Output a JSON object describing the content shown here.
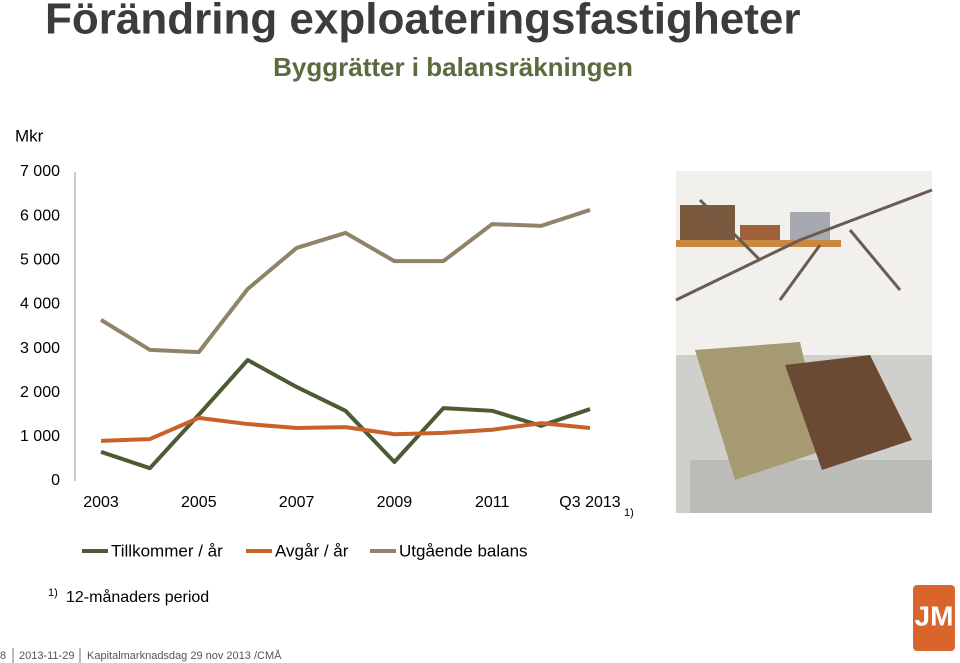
{
  "header": {
    "title": "Förändring exploateringsfastigheter",
    "subtitle": "Byggrätter i balansräkningen"
  },
  "chart_data": {
    "type": "line",
    "y_unit": "Mkr",
    "categories": [
      "2003",
      null,
      "2005",
      null,
      "2007",
      null,
      "2009",
      null,
      "2011",
      null,
      "Q3 2013"
    ],
    "annotations": [
      "1)"
    ],
    "series": [
      {
        "name": "Tillkommer / år",
        "color": "#4b5b34",
        "values": [
          660,
          290,
          1500,
          2740,
          2130,
          1590,
          430,
          1650,
          1590,
          1250,
          1630
        ]
      },
      {
        "name": "Avgår / år",
        "color": "#c8622b",
        "values": [
          910,
          950,
          1430,
          1290,
          1200,
          1220,
          1060,
          1090,
          1160,
          1310,
          1200
        ]
      },
      {
        "name": "Utgående balans",
        "color": "#8f8469",
        "values": [
          3650,
          2970,
          2920,
          4350,
          5280,
          5620,
          4980,
          4980,
          5820,
          5780,
          6140
        ]
      }
    ],
    "ylim": [
      0,
      7000
    ],
    "yticks": [
      0,
      {
        "value": 1000,
        "label": "1 000"
      },
      {
        "value": 2000,
        "label": "2 000"
      },
      {
        "value": 3000,
        "label": "3 000"
      },
      {
        "value": 4000,
        "label": "4 000"
      },
      {
        "value": 5000,
        "label": "5 000"
      },
      {
        "value": 6000,
        "label": "6 000"
      },
      {
        "value": 7000,
        "label": "7 000"
      }
    ],
    "grid": false,
    "legend": "bottom"
  },
  "footnote": {
    "marker": "1)",
    "text": "12-månaders period"
  },
  "logo": "JM",
  "footer": {
    "page": "8",
    "date": "2013-11-29",
    "event": "Kapitalmarknadsdag 29 nov 2013 /CMÅ"
  }
}
